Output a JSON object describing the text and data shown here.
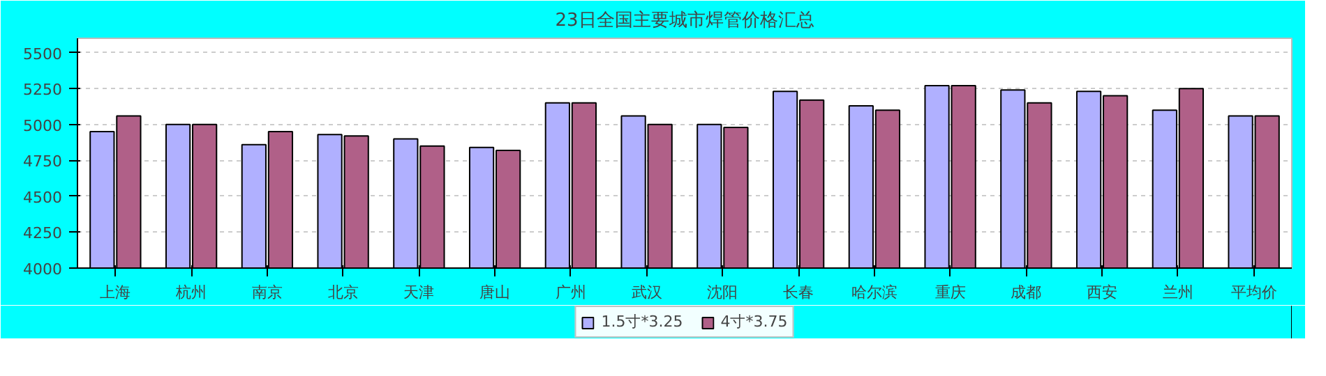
{
  "chart_data": {
    "type": "bar",
    "title": "23日全国主要城市焊管价格汇总",
    "categories": [
      "上海",
      "杭州",
      "南京",
      "北京",
      "天津",
      "唐山",
      "广州",
      "武汉",
      "沈阳",
      "长春",
      "哈尔滨",
      "重庆",
      "成都",
      "西安",
      "兰州",
      "平均价"
    ],
    "series": [
      {
        "name": "1.5寸*3.25",
        "color": "#b0b0ff",
        "values": [
          4950,
          5000,
          4860,
          4930,
          4900,
          4840,
          5150,
          5060,
          5000,
          5230,
          5130,
          5270,
          5240,
          5230,
          5100,
          5060
        ]
      },
      {
        "name": "4寸*3.75",
        "color": "#b06088",
        "values": [
          5060,
          5000,
          4950,
          4920,
          4850,
          4820,
          5150,
          5000,
          4980,
          5170,
          5100,
          5270,
          5150,
          5200,
          5250,
          5060
        ]
      }
    ],
    "ylim": [
      4000,
      5600
    ],
    "yticks": [
      4000,
      4250,
      4500,
      4750,
      5000,
      5250,
      5500
    ],
    "grid": "y",
    "legend": "bottom"
  }
}
